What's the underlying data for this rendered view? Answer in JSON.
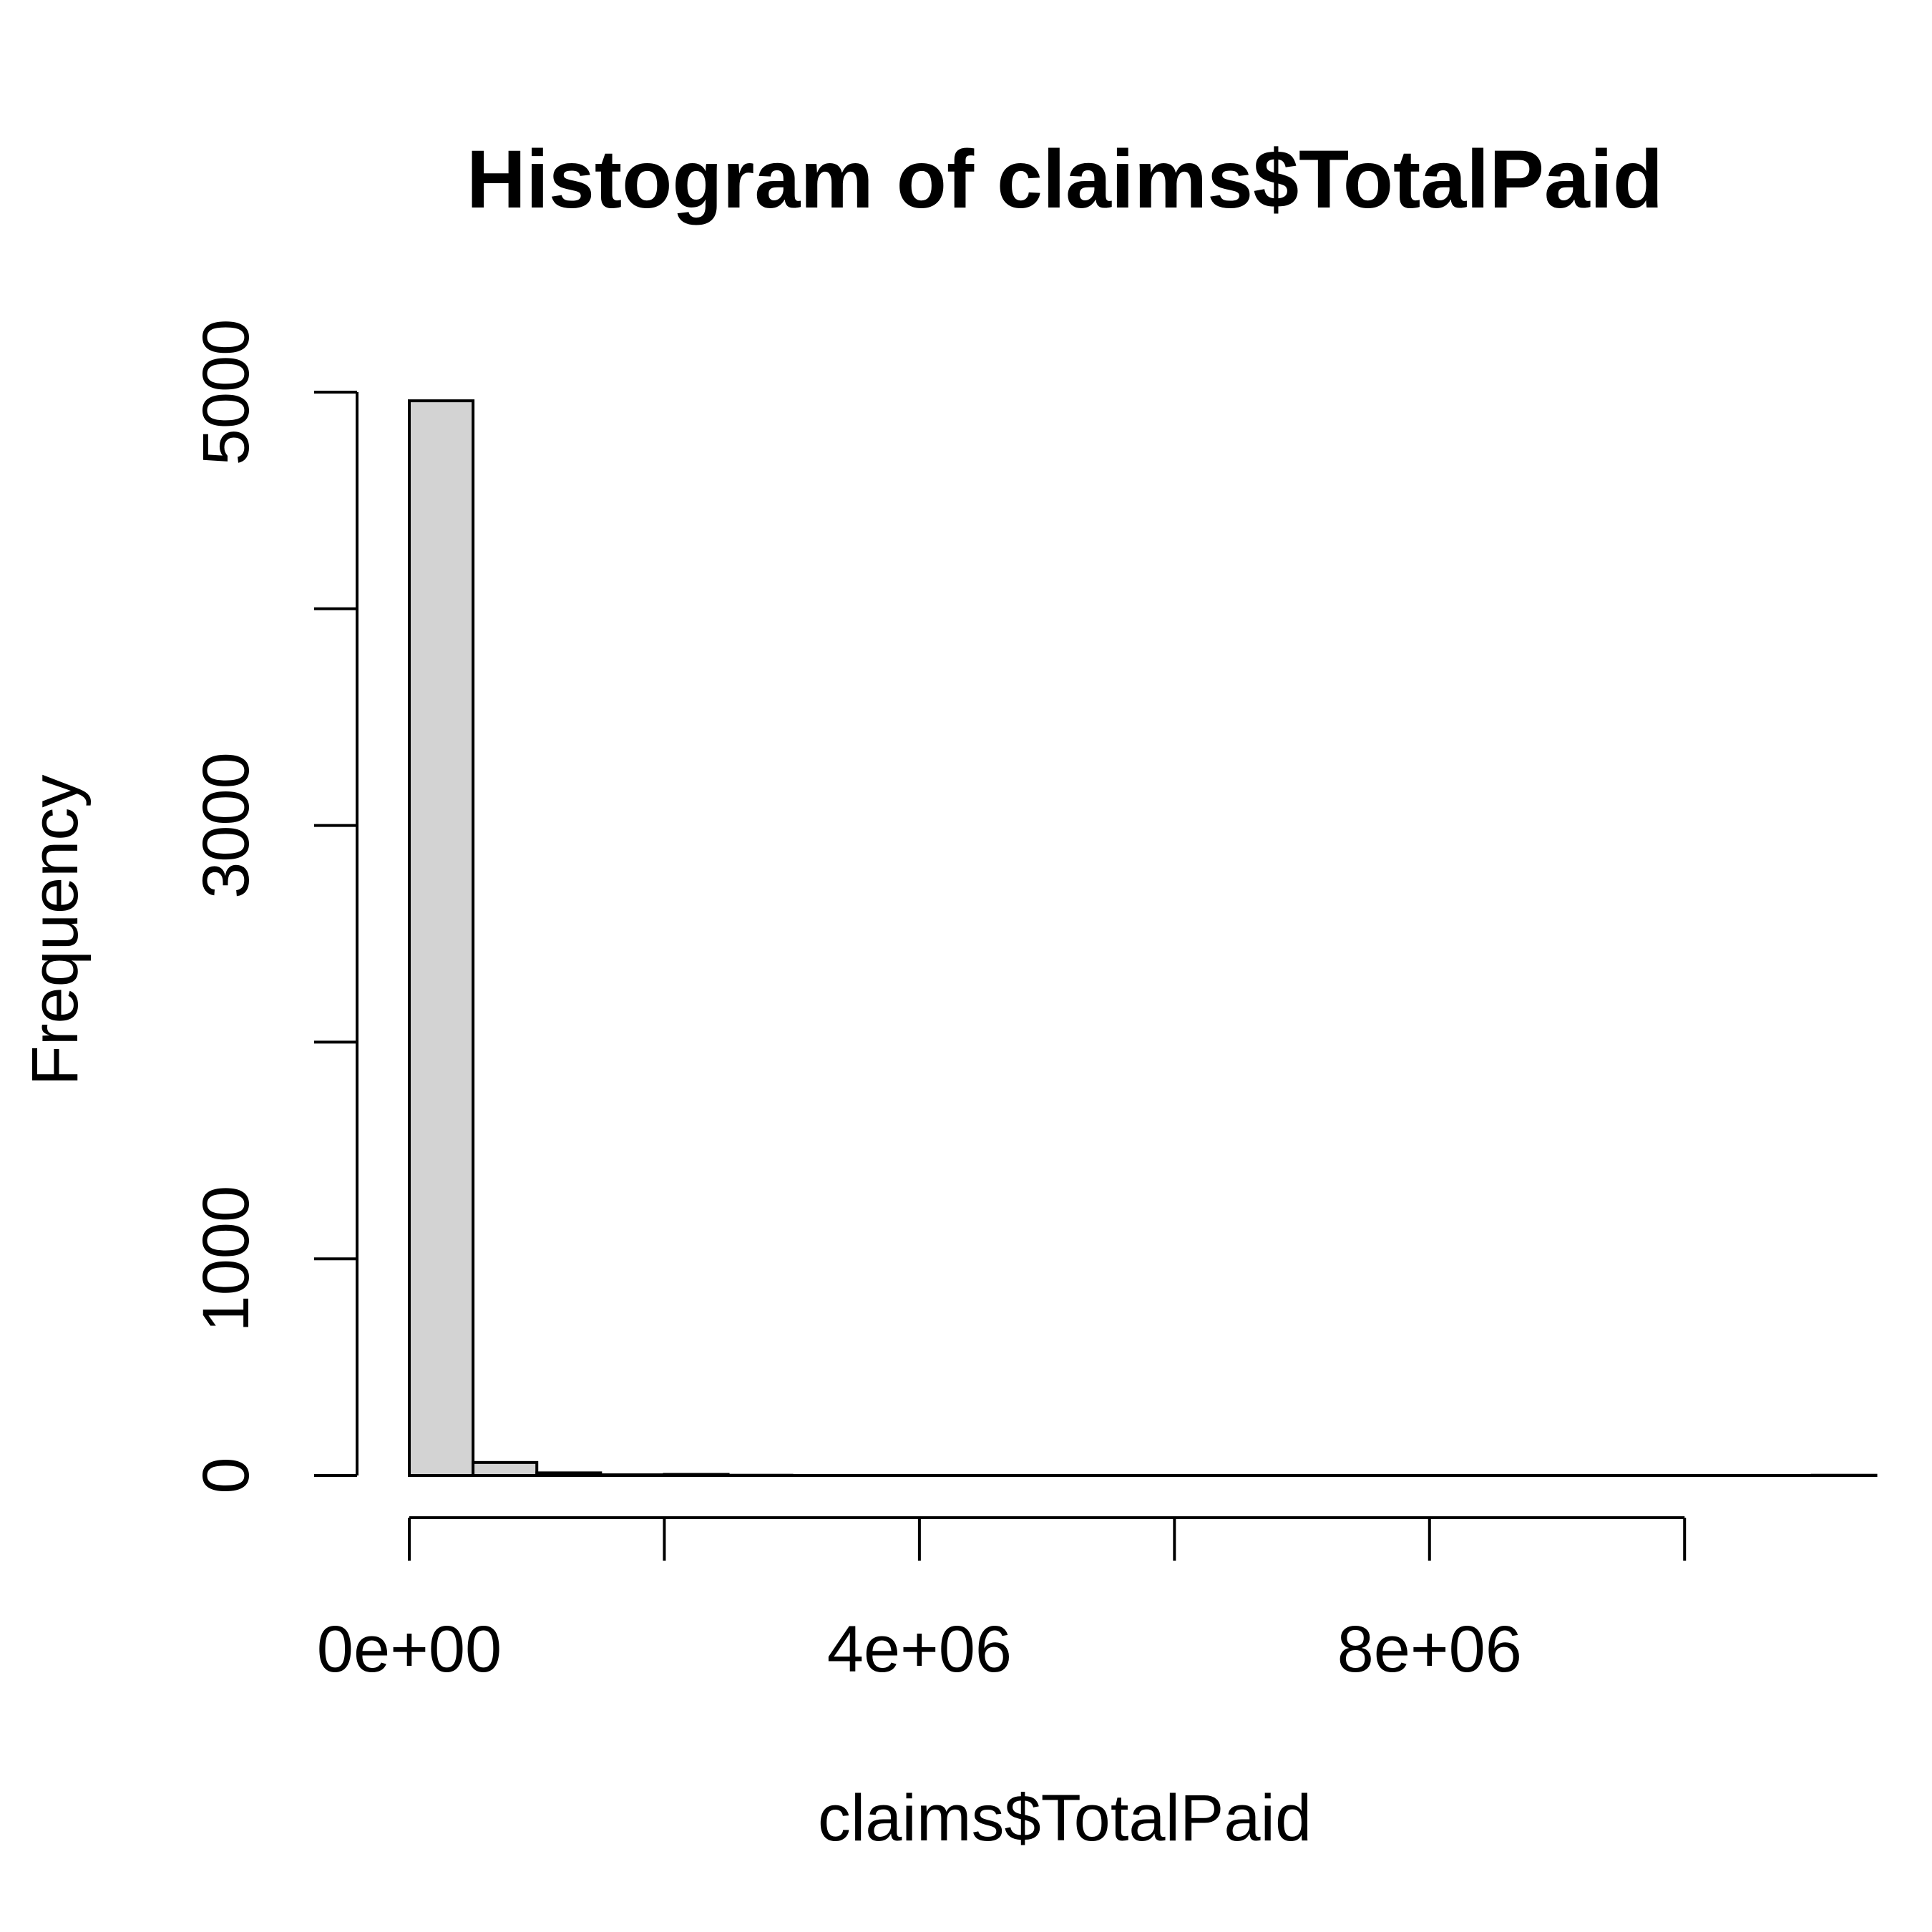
{
  "chart_data": {
    "type": "bar",
    "title": "Histogram of claims$TotalPaid",
    "xlabel": "claims$TotalPaid",
    "ylabel": "Frequency",
    "bin_width": 500000,
    "bins": [
      {
        "start": 0,
        "end": 500000,
        "count": 4960
      },
      {
        "start": 500000,
        "end": 1000000,
        "count": 60
      },
      {
        "start": 1000000,
        "end": 1500000,
        "count": 12
      },
      {
        "start": 1500000,
        "end": 2000000,
        "count": 3
      },
      {
        "start": 2000000,
        "end": 2500000,
        "count": 5
      },
      {
        "start": 2500000,
        "end": 3000000,
        "count": 1
      },
      {
        "start": 3000000,
        "end": 3500000,
        "count": 0
      },
      {
        "start": 3500000,
        "end": 4000000,
        "count": 0
      },
      {
        "start": 4000000,
        "end": 4500000,
        "count": 0
      },
      {
        "start": 4500000,
        "end": 5000000,
        "count": 0
      },
      {
        "start": 5000000,
        "end": 5500000,
        "count": 0
      },
      {
        "start": 5500000,
        "end": 6000000,
        "count": 0
      },
      {
        "start": 6000000,
        "end": 6500000,
        "count": 0
      },
      {
        "start": 6500000,
        "end": 7000000,
        "count": 0
      },
      {
        "start": 7000000,
        "end": 7500000,
        "count": 0
      },
      {
        "start": 7500000,
        "end": 8000000,
        "count": 0
      },
      {
        "start": 8000000,
        "end": 8500000,
        "count": 0
      },
      {
        "start": 8500000,
        "end": 9000000,
        "count": 0
      },
      {
        "start": 9000000,
        "end": 9500000,
        "count": 0
      },
      {
        "start": 9500000,
        "end": 10000000,
        "count": 0
      },
      {
        "start": 10000000,
        "end": 10500000,
        "count": 0
      },
      {
        "start": 10500000,
        "end": 11000000,
        "count": 0
      },
      {
        "start": 11000000,
        "end": 11500000,
        "count": 1
      }
    ],
    "x_ticks": [
      0,
      2000000,
      4000000,
      6000000,
      8000000,
      10000000
    ],
    "x_tick_labels": [
      "0e+00",
      "",
      "4e+06",
      "",
      "8e+06",
      ""
    ],
    "y_ticks": [
      0,
      1000,
      2000,
      3000,
      4000,
      5000
    ],
    "y_tick_labels": [
      "0",
      "1000",
      "",
      "3000",
      "",
      "5000"
    ],
    "xlim": [
      0,
      11500000
    ],
    "ylim": [
      0,
      5000
    ],
    "grid": false,
    "bar_fill": "#d3d3d3",
    "bar_stroke": "#000000"
  }
}
